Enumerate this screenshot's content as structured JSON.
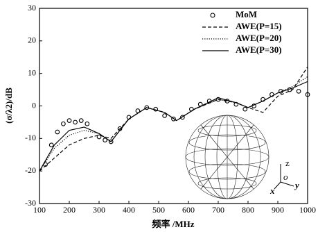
{
  "chart_data": {
    "type": "line",
    "xlabel": "频率 /MHz",
    "ylabel": "(σ/λ2)/dB",
    "xlim": [
      100,
      1000
    ],
    "xticks": [
      100,
      200,
      300,
      400,
      500,
      600,
      700,
      800,
      900,
      1000
    ],
    "ylim": [
      -30,
      30
    ],
    "yticks": [
      -30,
      -20,
      -10,
      0,
      10,
      20,
      30
    ],
    "legend": "upper right",
    "series": [
      {
        "name": "MoM",
        "color": "#000000",
        "mode": "markers",
        "marker": "circle",
        "x": [
          120,
          140,
          160,
          180,
          200,
          220,
          240,
          260,
          300,
          320,
          340,
          370,
          400,
          430,
          460,
          490,
          520,
          550,
          580,
          610,
          640,
          670,
          700,
          730,
          760,
          790,
          820,
          850,
          880,
          910,
          940,
          970,
          1000
        ],
        "values": [
          -18,
          -12,
          -8,
          -5.5,
          -4.5,
          -5,
          -4.5,
          -5.5,
          -9.5,
          -10.5,
          -11,
          -7,
          -3.5,
          -1.5,
          -0.5,
          -1,
          -3,
          -4,
          -3.5,
          -1,
          0.5,
          1.5,
          2,
          1.5,
          0.5,
          -1,
          0,
          2,
          3.5,
          4.5,
          5,
          4.5,
          3.5
        ]
      },
      {
        "name": "AWE(P=15)",
        "color": "#000000",
        "mode": "line",
        "line_style": "dashed",
        "x": [
          100,
          150,
          200,
          250,
          300,
          340,
          400,
          460,
          520,
          560,
          620,
          700,
          760,
          800,
          850,
          900,
          950,
          1000
        ],
        "values": [
          -20,
          -16,
          -12,
          -10,
          -9,
          -10,
          -4,
          -0.5,
          -2,
          -4.5,
          -1,
          2,
          1,
          -0.5,
          -2,
          3,
          5,
          12
        ]
      },
      {
        "name": "AWE(P=20)",
        "color": "#000000",
        "mode": "line",
        "line_style": "dotted",
        "x": [
          100,
          150,
          200,
          250,
          300,
          340,
          400,
          460,
          520,
          560,
          620,
          700,
          760,
          800,
          850,
          900,
          950,
          1000
        ],
        "values": [
          -20,
          -13,
          -9,
          -7.5,
          -8.5,
          -11,
          -4,
          -0.5,
          -2,
          -4.5,
          -1,
          2,
          1,
          -0.5,
          1.5,
          4,
          6,
          9
        ]
      },
      {
        "name": "AWE(P=30)",
        "color": "#000000",
        "mode": "line",
        "line_style": "solid",
        "x": [
          100,
          150,
          200,
          250,
          300,
          340,
          400,
          460,
          520,
          560,
          620,
          700,
          760,
          800,
          850,
          900,
          950,
          1000
        ],
        "values": [
          -20,
          -12,
          -7.5,
          -6.5,
          -8.5,
          -11,
          -4,
          -0.5,
          -2,
          -4.5,
          -1,
          2.5,
          1,
          -0.5,
          1.5,
          4,
          5.5,
          7.5
        ]
      }
    ],
    "inset_labels": [
      "z",
      "o",
      "x",
      "y"
    ]
  }
}
